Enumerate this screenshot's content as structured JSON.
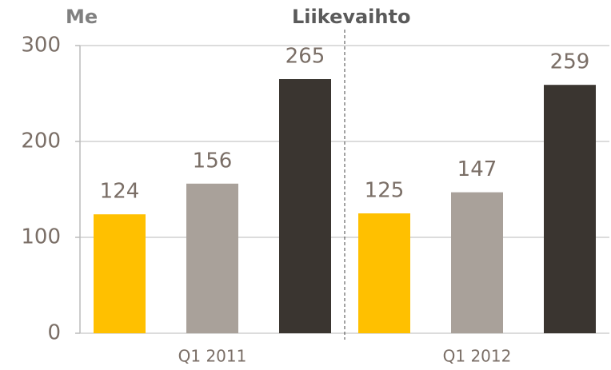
{
  "chart_data": {
    "type": "bar",
    "title": "Liikevaihto",
    "y_label": "Me",
    "categories": [
      "Q1 2011",
      "Q1 2012"
    ],
    "series": [
      {
        "color": "#FFC000",
        "values": [
          124,
          125
        ]
      },
      {
        "color": "#A9A19A",
        "values": [
          156,
          147
        ]
      },
      {
        "color": "#3A3530",
        "values": [
          265,
          259
        ]
      }
    ],
    "ylim": [
      0,
      300
    ],
    "yticks": [
      0,
      100,
      200,
      300
    ],
    "grid": true
  }
}
